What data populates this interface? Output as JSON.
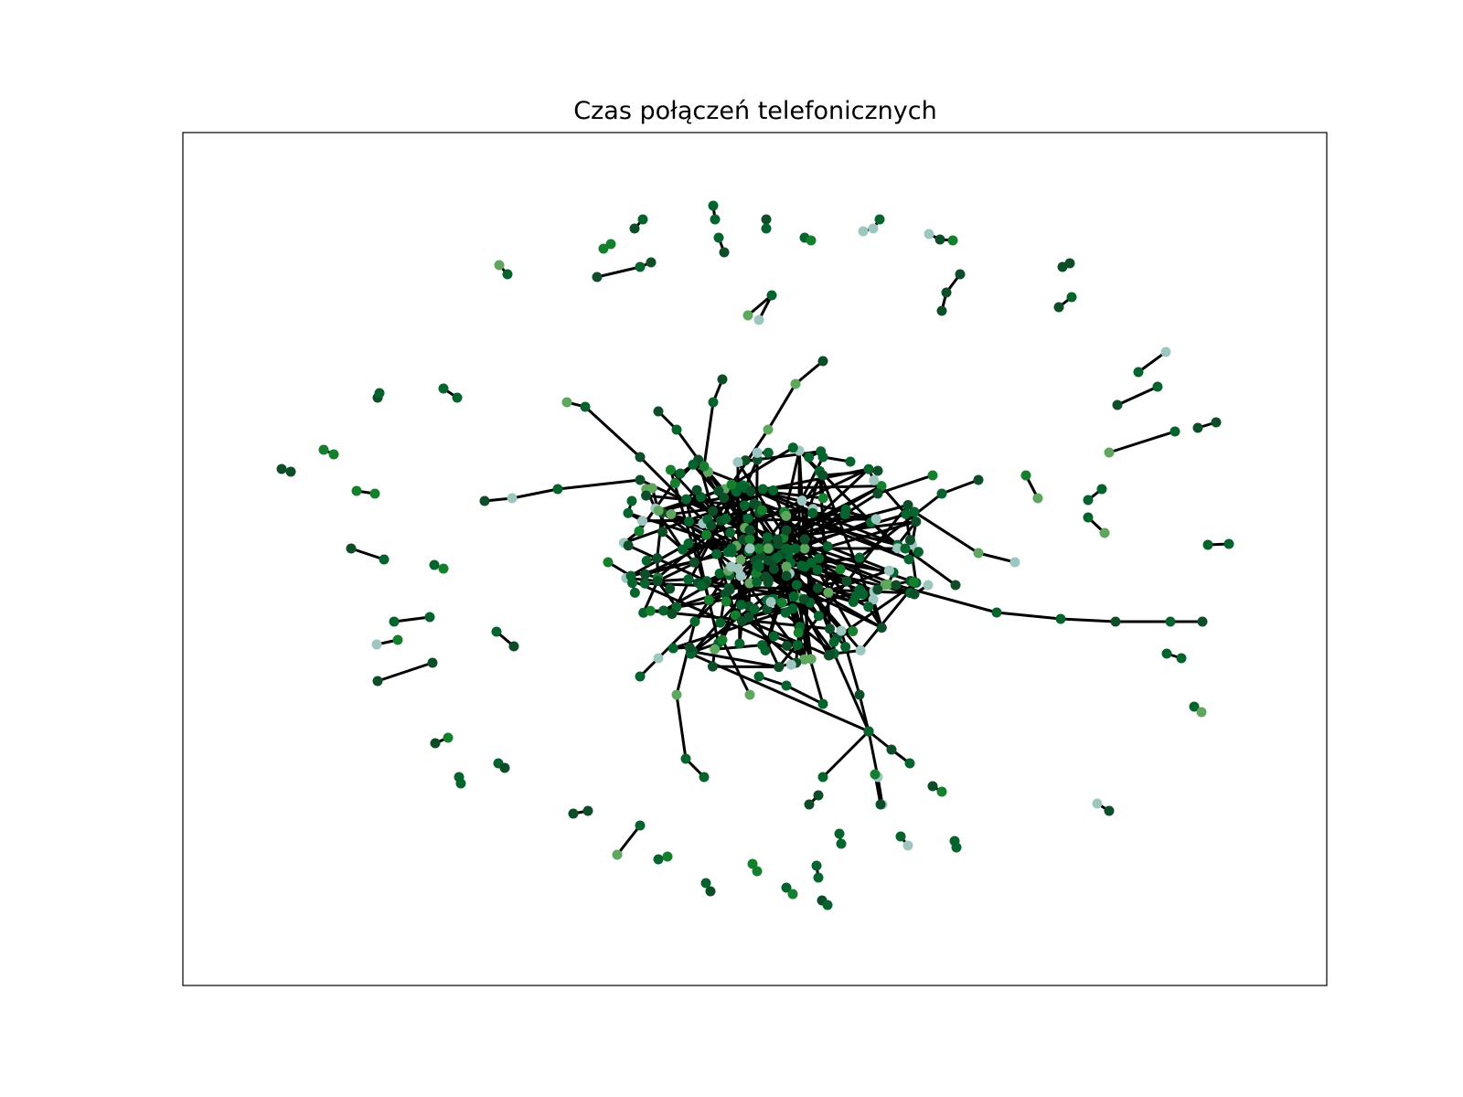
{
  "title": "Czas połączeń telefonicznych",
  "colors": {
    "edge": "#000000",
    "frame": "#000000",
    "node_palette": [
      "#9ec6c0",
      "#5fa75e",
      "#14802e",
      "#05632d",
      "#0d4d27"
    ]
  }
}
